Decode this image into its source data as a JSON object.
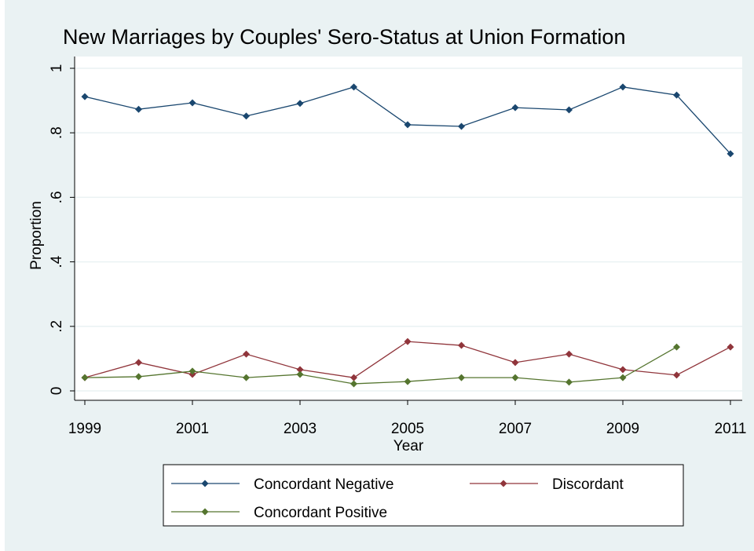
{
  "chart_data": {
    "type": "line",
    "title": "New Marriages by Couples' Sero-Status at Union Formation",
    "xlabel": "Year",
    "ylabel": "Proportion",
    "x": [
      1999,
      2000,
      2001,
      2002,
      2003,
      2004,
      2005,
      2006,
      2007,
      2008,
      2009,
      2010,
      2011
    ],
    "series": [
      {
        "name": "Concordant Negative",
        "color": "#1a476f",
        "values": [
          0.912,
          0.873,
          0.893,
          0.852,
          0.891,
          0.942,
          0.825,
          0.82,
          0.878,
          0.871,
          0.942,
          0.917,
          0.735
        ]
      },
      {
        "name": "Discordant",
        "color": "#90353b",
        "values": [
          0.041,
          0.088,
          0.051,
          0.114,
          0.066,
          0.041,
          0.153,
          0.141,
          0.088,
          0.114,
          0.066,
          0.049,
          0.136
        ]
      },
      {
        "name": "Concordant Positive",
        "color": "#55752f",
        "values": [
          0.041,
          0.044,
          0.061,
          0.041,
          0.051,
          0.022,
          0.029,
          0.041,
          0.041,
          0.027,
          0.041,
          0.136,
          null
        ]
      }
    ],
    "xlim": [
      1999,
      2011
    ],
    "xticks": [
      1999,
      2001,
      2003,
      2005,
      2007,
      2009,
      2011
    ],
    "ylim": [
      0,
      1
    ],
    "yticks": [
      0,
      {
        "value": 0.2,
        "label": ".2"
      },
      {
        "value": 0.4,
        "label": ".4"
      },
      {
        "value": 0.6,
        "label": ".6"
      },
      {
        "value": 0.8,
        "label": ".8"
      },
      1
    ],
    "grid": true
  }
}
